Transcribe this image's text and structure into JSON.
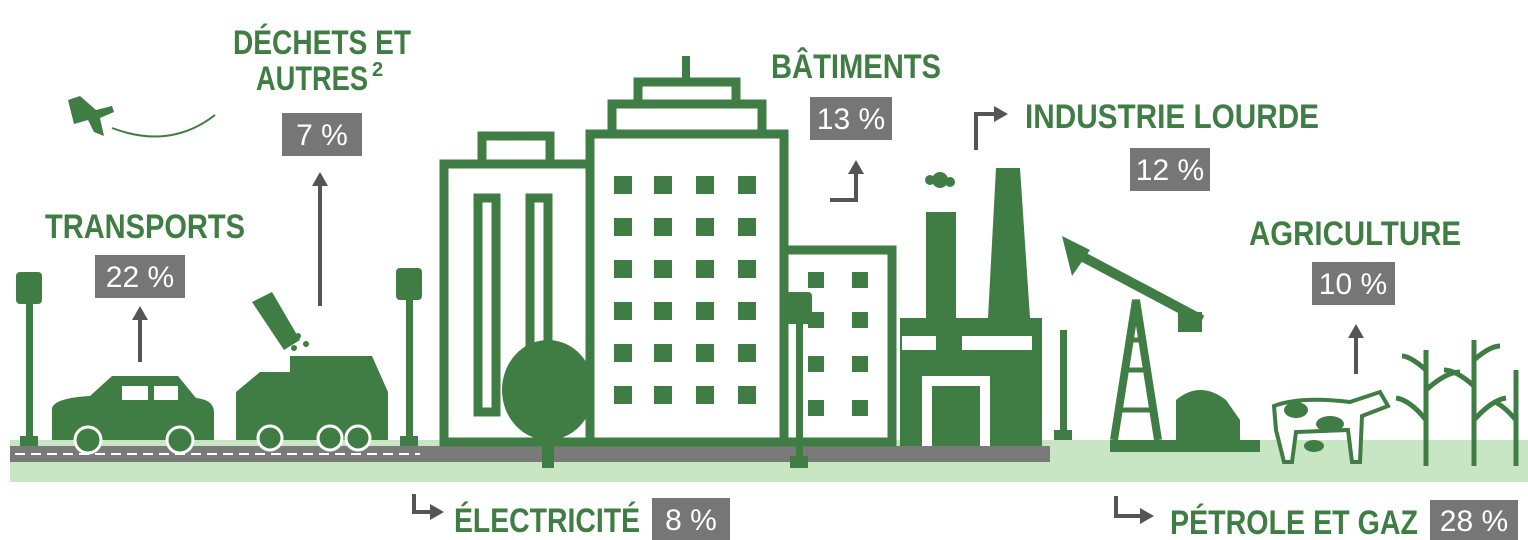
{
  "sectors": [
    {
      "label": "TRANSPORTS",
      "value": "22 %"
    },
    {
      "label_lines": [
        "DÉCHETS ET",
        "AUTRES"
      ],
      "note": "2",
      "value": "7 %"
    },
    {
      "label": "BÂTIMENTS",
      "value": "13 %"
    },
    {
      "label": "INDUSTRIE LOURDE",
      "value": "12 %"
    },
    {
      "label": "AGRICULTURE",
      "value": "10 %"
    },
    {
      "label": "ÉLECTRICITÉ",
      "value": "8 %"
    },
    {
      "label": "PÉTROLE ET GAZ",
      "value": "28 %"
    }
  ]
}
